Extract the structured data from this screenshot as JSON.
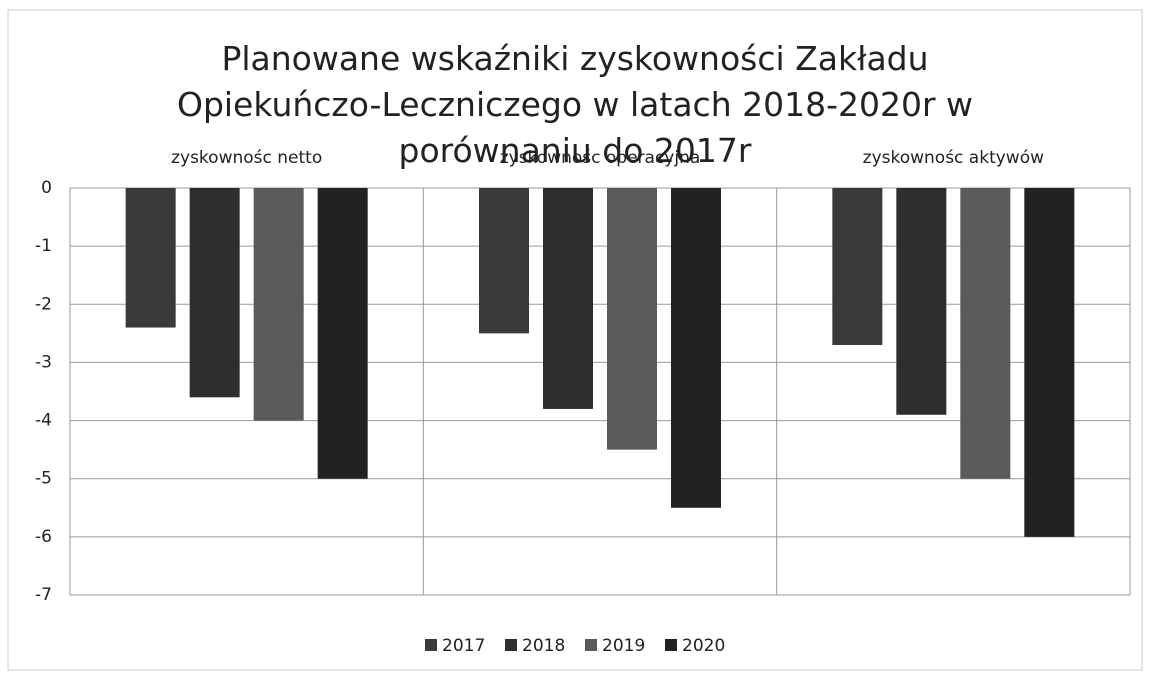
{
  "chart_data": {
    "type": "bar",
    "title": "Planowane wskaźniki zyskowności Zakładu Opiekuńczo-Leczniczego w latach 2018-2020r w porównaniu do 2017r",
    "categories": [
      "zyskownośc netto",
      "zyskownośc operacyjna",
      "zyskownośc aktywów"
    ],
    "series": [
      {
        "name": "2017",
        "color": "#3a3a3a",
        "values": [
          -2.4,
          -2.5,
          -2.7
        ]
      },
      {
        "name": "2018",
        "color": "#2e2e2e",
        "values": [
          -3.6,
          -3.8,
          -3.9
        ]
      },
      {
        "name": "2019",
        "color": "#5a5a5a",
        "values": [
          -4,
          -4.5,
          -5
        ]
      },
      {
        "name": "2020",
        "color": "#222222",
        "values": [
          -5,
          -5.5,
          -6
        ]
      }
    ],
    "ylim": [
      -7,
      0
    ],
    "yticks": [
      0,
      -1,
      -2,
      -3,
      -4,
      -5,
      -6,
      -7
    ],
    "grid": true,
    "legend": "bottom"
  }
}
